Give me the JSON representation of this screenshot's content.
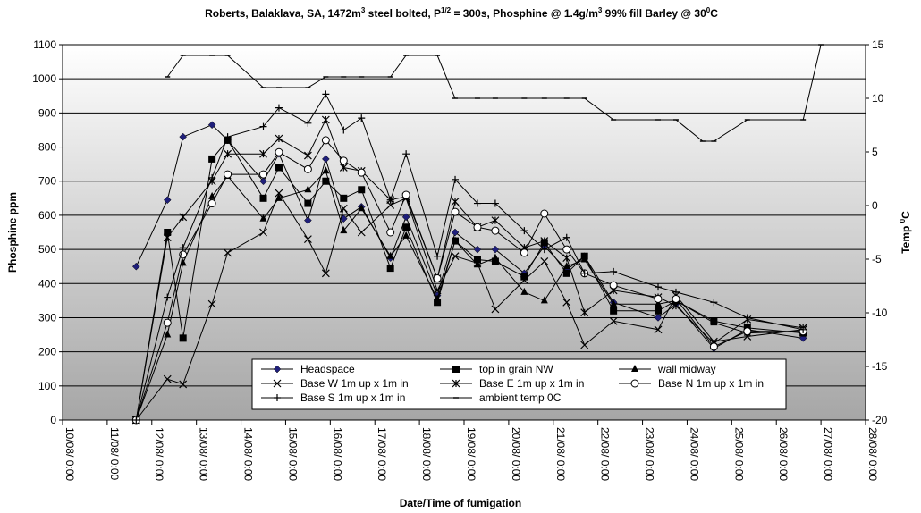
{
  "chart_data": {
    "type": "line",
    "title": {
      "main": "Roberts, Balaklava, SA, 1472m",
      "sup1": "3",
      "part2": " steel bolted, P",
      "sup2": "1/2",
      "part3": " = 300s, Phosphine @ 1.4g/m",
      "sup3": "3",
      "part4": "  99% fill Barley @ 30",
      "sup4": "0",
      "part5": "C"
    },
    "xlabel": "Date/Time of fumigation",
    "ylabel": "Phosphine ppm",
    "y2label": {
      "main": "Temp ",
      "sup": "0",
      "tail": "C"
    },
    "xlim": [
      10,
      28
    ],
    "ylim": [
      0,
      1100
    ],
    "y2lim": [
      -20,
      15
    ],
    "x_ticks": [
      {
        "v": 10,
        "label": "10/08/ 0:00"
      },
      {
        "v": 11,
        "label": "11/08/ 0:00"
      },
      {
        "v": 12,
        "label": "12/08/ 0:00"
      },
      {
        "v": 13,
        "label": "13/08/ 0:00"
      },
      {
        "v": 14,
        "label": "14/08/ 0:00"
      },
      {
        "v": 15,
        "label": "15/08/ 0:00"
      },
      {
        "v": 16,
        "label": "16/08/ 0:00"
      },
      {
        "v": 17,
        "label": "17/08/ 0:00"
      },
      {
        "v": 18,
        "label": "18/08/ 0:00"
      },
      {
        "v": 19,
        "label": "19/08/ 0:00"
      },
      {
        "v": 20,
        "label": "20/08/ 0:00"
      },
      {
        "v": 21,
        "label": "21/08/ 0:00"
      },
      {
        "v": 22,
        "label": "22/08/ 0:00"
      },
      {
        "v": 23,
        "label": "23/08/ 0:00"
      },
      {
        "v": 24,
        "label": "24/08/ 0:00"
      },
      {
        "v": 25,
        "label": "25/08/ 0:00"
      },
      {
        "v": 26,
        "label": "26/08/ 0:00"
      },
      {
        "v": 27,
        "label": "27/08/ 0:00"
      },
      {
        "v": 28,
        "label": "28/08/ 0:00"
      }
    ],
    "y_ticks": [
      0,
      100,
      200,
      300,
      400,
      500,
      600,
      700,
      800,
      900,
      1000,
      1100
    ],
    "y2_ticks": [
      -20,
      -15,
      -10,
      -5,
      0,
      5,
      10,
      15
    ],
    "grid": "horizontal",
    "legend_position": "bottom-center",
    "colors": {
      "plot_top": "#ffffff",
      "plot_bottom": "#a6a6a6",
      "line": "#000000",
      "headspace_marker": "#1f1f7a"
    },
    "x_times": [
      11.65,
      12.35,
      12.7,
      13.35,
      13.7,
      14.5,
      14.85,
      15.5,
      15.9,
      16.3,
      16.7,
      17.35,
      17.7,
      18.4,
      18.8,
      19.3,
      19.7,
      20.35,
      20.8,
      21.3,
      21.7,
      22.35,
      23.35,
      23.75,
      24.6,
      25.35,
      26.6
    ],
    "series": [
      {
        "name": "Headspace",
        "marker": "diamond",
        "axis": "left",
        "values": [
          450,
          645,
          830,
          865,
          820,
          700,
          780,
          585,
          765,
          590,
          625,
          475,
          595,
          365,
          550,
          500,
          500,
          430,
          510,
          440,
          480,
          345,
          300,
          340,
          210,
          265,
          240
        ]
      },
      {
        "name": "top in grain NW",
        "marker": "square",
        "axis": "left",
        "values": [
          0,
          550,
          240,
          765,
          820,
          650,
          740,
          635,
          700,
          650,
          675,
          445,
          565,
          345,
          525,
          470,
          465,
          420,
          520,
          430,
          480,
          320,
          320,
          350,
          290,
          270,
          255
        ]
      },
      {
        "name": "wall midway",
        "marker": "triangle",
        "axis": "left",
        "values": [
          0,
          250,
          460,
          655,
          715,
          590,
          650,
          675,
          730,
          555,
          620,
          480,
          540,
          355,
          525,
          455,
          475,
          375,
          350,
          450,
          470,
          340,
          340,
          350,
          285,
          255,
          260
        ]
      },
      {
        "name": "Base W 1m up x 1m in",
        "marker": "x",
        "axis": "left",
        "values": [
          0,
          120,
          105,
          340,
          490,
          550,
          665,
          530,
          430,
          620,
          550,
          630,
          650,
          380,
          480,
          460,
          325,
          410,
          465,
          345,
          220,
          290,
          265,
          365,
          230,
          245,
          265
        ]
      },
      {
        "name": "Base E 1m up x 1m in",
        "marker": "asterisk",
        "axis": "left",
        "values": [
          0,
          535,
          595,
          700,
          780,
          780,
          825,
          775,
          880,
          740,
          730,
          645,
          655,
          415,
          640,
          565,
          585,
          505,
          525,
          475,
          315,
          380,
          360,
          335,
          225,
          295,
          270
        ]
      },
      {
        "name": "Base N 1m up x 1m in",
        "marker": "circle",
        "axis": "left",
        "values": [
          0,
          285,
          485,
          635,
          720,
          720,
          785,
          735,
          820,
          760,
          725,
          550,
          660,
          415,
          610,
          565,
          555,
          490,
          605,
          500,
          430,
          395,
          355,
          355,
          215,
          260,
          260
        ]
      },
      {
        "name": "Base S 1m up x 1m in",
        "marker": "plus",
        "axis": "left",
        "values": [
          0,
          360,
          505,
          710,
          830,
          860,
          915,
          870,
          955,
          850,
          885,
          645,
          780,
          480,
          705,
          635,
          635,
          555,
          500,
          535,
          430,
          435,
          390,
          375,
          345,
          300,
          265
        ]
      },
      {
        "name": "ambient temp 0C",
        "marker": "dash",
        "axis": "right",
        "x": [
          12.35,
          12.7,
          13.35,
          13.7,
          14.5,
          14.85,
          15.5,
          15.9,
          16.3,
          16.7,
          17.35,
          17.7,
          18.4,
          18.8,
          19.3,
          19.7,
          20.35,
          20.8,
          21.3,
          21.7,
          22.35,
          23.35,
          23.75,
          24.35,
          24.6,
          25.35,
          26.6,
          27.0
        ],
        "values": [
          12,
          14,
          14,
          14,
          11,
          11,
          11,
          12,
          12,
          12,
          12,
          14,
          14,
          10,
          10,
          10,
          10,
          10,
          10,
          10,
          8,
          8,
          8,
          6,
          6,
          8,
          8,
          15
        ]
      }
    ]
  }
}
